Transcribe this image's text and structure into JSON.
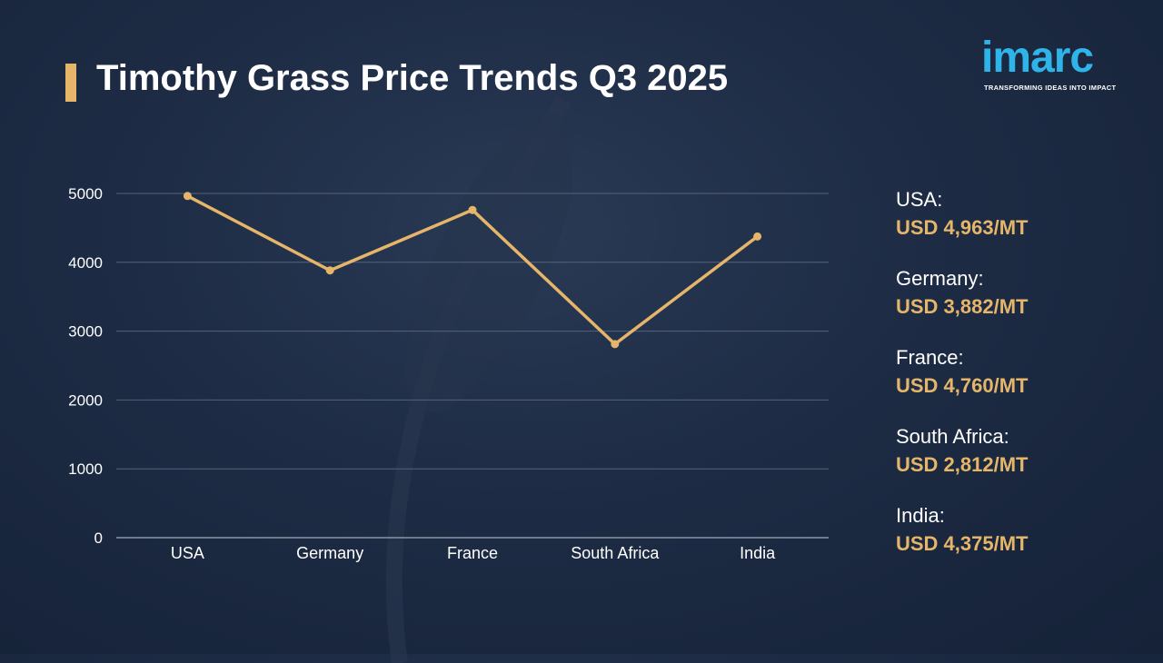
{
  "title": "Timothy Grass Price Trends Q3 2025",
  "logo": {
    "word": "imarc",
    "tagline": "TRANSFORMING IDEAS INTO IMPACT"
  },
  "colors": {
    "accent": "#e5b66a",
    "line": "#e5b66a",
    "logo": "#2fb4ea",
    "text": "#ffffff"
  },
  "chart_data": {
    "type": "line",
    "categories": [
      "USA",
      "Germany",
      "France",
      "South Africa",
      "India"
    ],
    "values": [
      4963,
      3882,
      4760,
      2812,
      4375
    ],
    "yticks": [
      0,
      1000,
      2000,
      3000,
      4000,
      5000
    ],
    "ylim": [
      0,
      5000
    ],
    "grid": true,
    "xlabel": "",
    "ylabel": ""
  },
  "legend": [
    {
      "name": "USA:",
      "value": "USD 4,963/MT"
    },
    {
      "name": "Germany:",
      "value": "USD 3,882/MT"
    },
    {
      "name": "France:",
      "value": "USD 4,760/MT"
    },
    {
      "name": "South Africa:",
      "value": "USD 2,812/MT"
    },
    {
      "name": "India:",
      "value": "USD 4,375/MT"
    }
  ]
}
